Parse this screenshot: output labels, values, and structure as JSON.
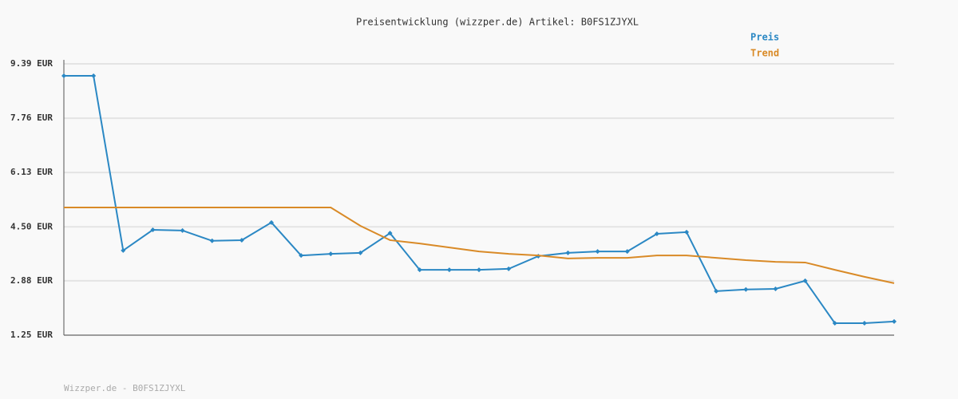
{
  "chart_data": {
    "type": "line",
    "title": "Preisentwicklung (wizzper.de) Artikel: B0FS1ZJYXL",
    "source": "Wizzper.de - B0FS1ZJYXL",
    "categories": [
      null,
      null,
      null,
      null,
      null,
      null,
      null,
      null,
      null,
      null,
      null,
      null,
      null,
      null,
      null,
      null,
      null,
      null,
      null,
      null,
      null,
      null,
      null,
      null,
      null,
      null,
      null,
      null,
      null
    ],
    "series": [
      {
        "name": "Preis",
        "color": "#2b88c4",
        "markers": true,
        "values": [
          9.03,
          9.03,
          3.79,
          4.41,
          4.39,
          4.08,
          4.1,
          4.63,
          3.64,
          3.69,
          3.72,
          4.31,
          3.21,
          3.21,
          3.21,
          3.24,
          3.62,
          3.72,
          3.76,
          3.76,
          4.29,
          4.34,
          2.57,
          2.62,
          2.64,
          2.88,
          1.61,
          1.61,
          1.66
        ]
      },
      {
        "name": "Trend",
        "color": "#d98a27",
        "markers": false,
        "values": [
          5.08,
          5.08,
          5.08,
          5.08,
          5.08,
          5.08,
          5.08,
          5.08,
          5.08,
          5.08,
          4.53,
          4.1,
          4.0,
          3.88,
          3.76,
          3.69,
          3.64,
          3.55,
          3.57,
          3.57,
          3.64,
          3.64,
          3.57,
          3.5,
          3.45,
          3.43,
          3.21,
          3.0,
          2.81
        ]
      }
    ],
    "ylim": [
      1.25,
      9.39
    ],
    "yticks": [
      {
        "value": 1.25,
        "label": "1.25 EUR"
      },
      {
        "value": 2.88,
        "label": "2.88 EUR"
      },
      {
        "value": 4.5,
        "label": "4.50 EUR"
      },
      {
        "value": 6.13,
        "label": "6.13 EUR"
      },
      {
        "value": 7.76,
        "label": "7.76 EUR"
      },
      {
        "value": 9.39,
        "label": "9.39 EUR"
      }
    ],
    "grid": true
  }
}
